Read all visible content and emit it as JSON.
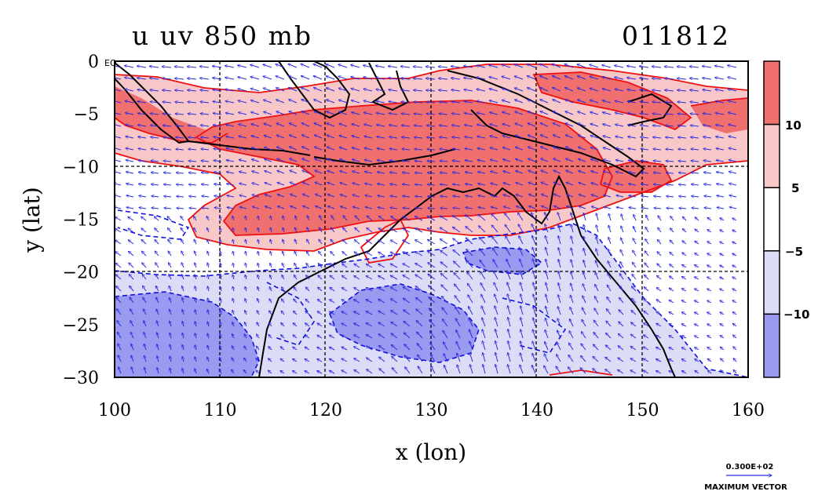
{
  "title_left": "u uv 850 mb",
  "title_right": "011812",
  "xlabel": "x (lon)",
  "ylabel": "y (lat)",
  "x_ticks": [
    "100",
    "110",
    "120",
    "130",
    "140",
    "150",
    "160"
  ],
  "y_ticks": [
    "0",
    "−5",
    "−10",
    "−15",
    "−20",
    "−25",
    "−30"
  ],
  "eq_label": "EQ",
  "colorbar_ticks": [
    "10",
    "5",
    "−5",
    "−10"
  ],
  "colorbar_colors": [
    "#f07070",
    "#f8c8c8",
    "#ffffff",
    "#dcdcf6",
    "#9a9af0"
  ],
  "vector_value": "0.300E+02",
  "vector_caption": "MAXIMUM VECTOR",
  "colors": {
    "positive_contour": "#ee1111",
    "negative_contour": "#1010dd",
    "vectors": "#2a2ae0",
    "coast": "#000000"
  },
  "map_extent": {
    "lon": [
      100,
      160
    ],
    "lat": [
      -30,
      0
    ]
  }
}
